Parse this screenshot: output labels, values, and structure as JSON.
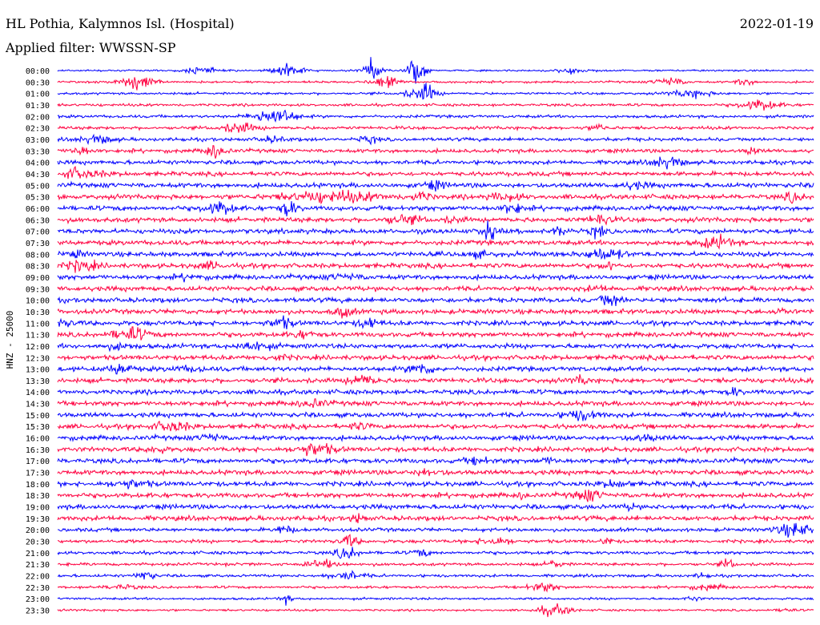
{
  "header": {
    "station": "HL Pothia, Kalymnos Isl. (Hospital)",
    "date": "2022-01-19",
    "filter": "Applied filter: WWSSN-SP"
  },
  "chart_data": {
    "type": "line",
    "title": "",
    "ylabel": "HNZ - 25000",
    "xlabel": "",
    "colors": [
      "#0000ff",
      "#ff0040"
    ],
    "row_labels": [
      "00:00",
      "00:30",
      "01:00",
      "01:30",
      "02:00",
      "02:30",
      "03:00",
      "03:30",
      "04:00",
      "04:30",
      "05:00",
      "05:30",
      "06:00",
      "06:30",
      "07:00",
      "07:30",
      "08:00",
      "08:30",
      "09:00",
      "09:30",
      "10:00",
      "10:30",
      "11:00",
      "11:30",
      "12:00",
      "12:30",
      "13:00",
      "13:30",
      "14:00",
      "14:30",
      "15:00",
      "15:30",
      "16:00",
      "16:30",
      "17:00",
      "17:30",
      "18:00",
      "18:30",
      "19:00",
      "19:30",
      "20:00",
      "20:30",
      "21:00",
      "21:30",
      "22:00",
      "22:30",
      "23:00",
      "23:30"
    ]
  }
}
